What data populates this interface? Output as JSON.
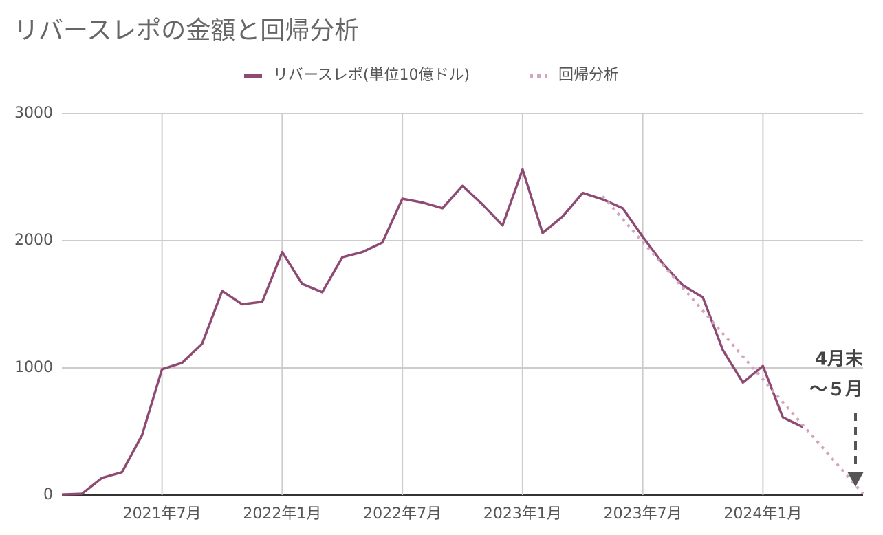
{
  "chart_data": {
    "type": "line",
    "title": "リバースレポの金額と回帰分析",
    "x": [
      "2021-02",
      "2021-03",
      "2021-04",
      "2021-05",
      "2021-06",
      "2021-07",
      "2021-08",
      "2021-09",
      "2021-10",
      "2021-11",
      "2021-12",
      "2022-01",
      "2022-02",
      "2022-03",
      "2022-04",
      "2022-05",
      "2022-06",
      "2022-07",
      "2022-08",
      "2022-09",
      "2022-10",
      "2022-11",
      "2022-12",
      "2023-01",
      "2023-02",
      "2023-03",
      "2023-04",
      "2023-05",
      "2023-06",
      "2023-07",
      "2023-08",
      "2023-09",
      "2023-10",
      "2023-11",
      "2023-12",
      "2024-01",
      "2024-02",
      "2024-03",
      "2024-04",
      "2024-05",
      "2024-06"
    ],
    "series": [
      {
        "name": "リバースレポ(単位10億ドル)",
        "color": "#8e4a73",
        "style": "solid",
        "values": [
          5,
          10,
          135,
          180,
          470,
          990,
          1040,
          1190,
          1605,
          1500,
          1520,
          1910,
          1660,
          1595,
          1870,
          1910,
          1985,
          2330,
          2300,
          2255,
          2430,
          2285,
          2120,
          2560,
          2060,
          2190,
          2375,
          2325,
          2255,
          2030,
          1820,
          1650,
          1555,
          1140,
          885,
          1015,
          610,
          535,
          null,
          null,
          null
        ]
      },
      {
        "name": "回帰分析",
        "color": "#d4a5c0",
        "style": "dotted",
        "values": [
          null,
          null,
          null,
          null,
          null,
          null,
          null,
          null,
          null,
          null,
          null,
          null,
          null,
          null,
          null,
          null,
          null,
          null,
          null,
          null,
          null,
          null,
          null,
          null,
          null,
          null,
          null,
          2350,
          2170,
          1990,
          1810,
          1630,
          1450,
          1270,
          1090,
          910,
          730,
          550,
          370,
          190,
          10
        ]
      }
    ],
    "xlim": [
      "2021-02",
      "2024-06"
    ],
    "xticks": [
      {
        "value": "2021-07",
        "label": "2021年7月"
      },
      {
        "value": "2022-01",
        "label": "2022年1月"
      },
      {
        "value": "2022-07",
        "label": "2022年7月"
      },
      {
        "value": "2023-01",
        "label": "2023年1月"
      },
      {
        "value": "2023-07",
        "label": "2023年7月"
      },
      {
        "value": "2024-01",
        "label": "2024年1月"
      }
    ],
    "ylim": [
      0,
      3000
    ],
    "yticks": [
      0,
      1000,
      2000,
      3000
    ],
    "grid": true,
    "legend": "top",
    "annotations": [
      "4月末",
      "〜５月"
    ]
  }
}
